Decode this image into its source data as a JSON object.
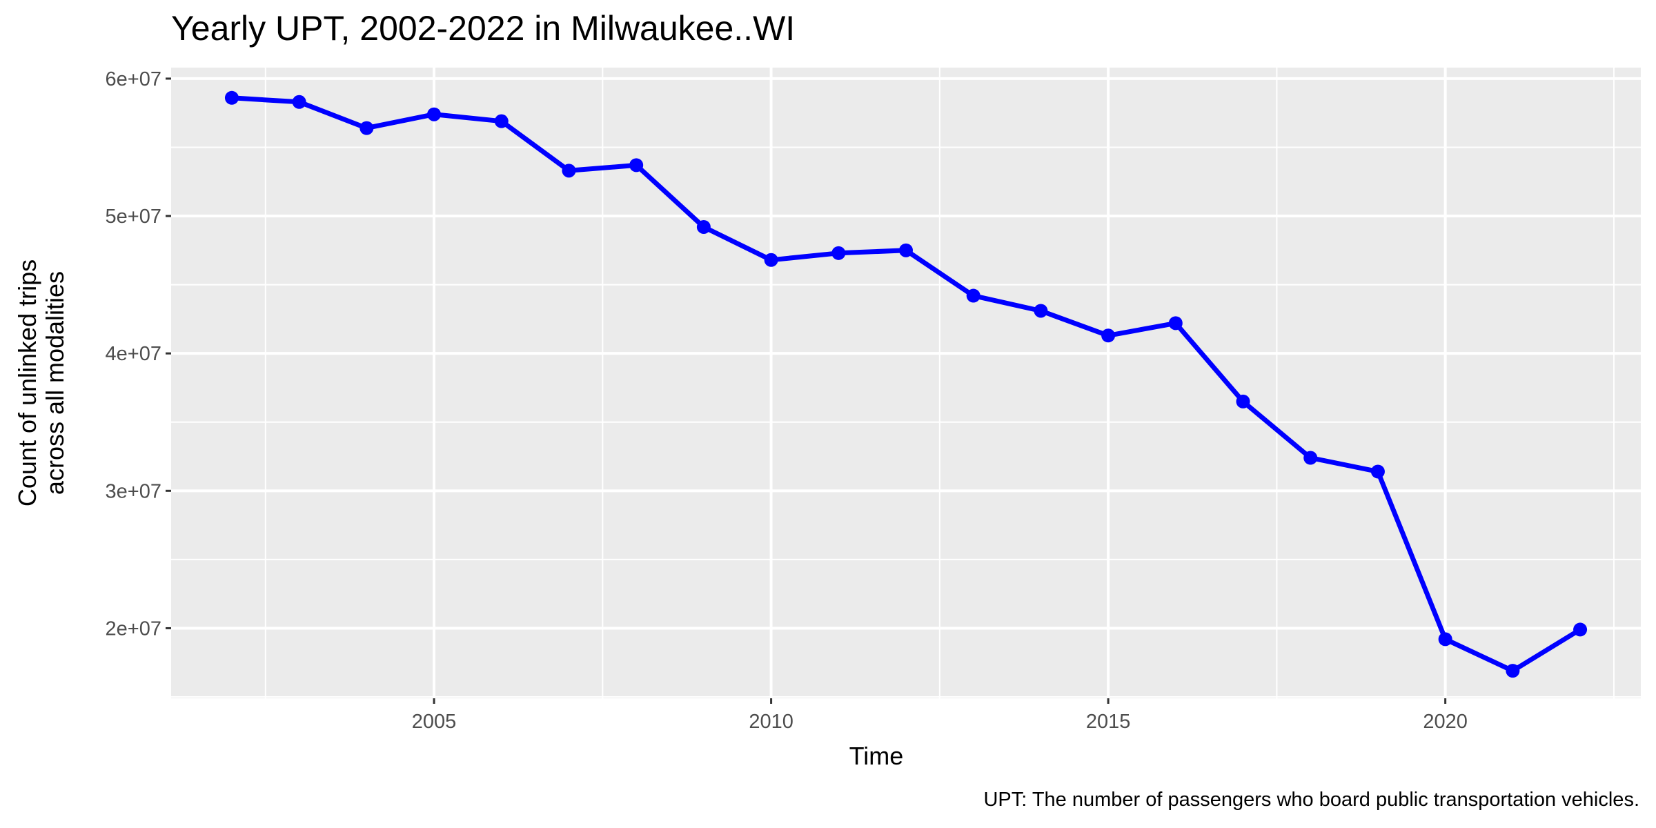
{
  "chart_data": {
    "type": "line",
    "title": "Yearly UPT, 2002-2022 in Milwaukee..WI",
    "xlabel": "Time",
    "ylabel_lines": [
      "Count of unlinked trips",
      "across all modalities"
    ],
    "caption": "UPT: The number of passengers who board public transportation vehicles.",
    "xlim": [
      2001.1,
      2022.9
    ],
    "ylim": [
      14900000,
      60800000
    ],
    "x_ticks": [
      2005,
      2010,
      2015,
      2020
    ],
    "x_tick_labels": [
      "2005",
      "2010",
      "2015",
      "2020"
    ],
    "y_ticks": [
      20000000,
      30000000,
      40000000,
      50000000,
      60000000
    ],
    "y_tick_labels": [
      "2e+07",
      "3e+07",
      "4e+07",
      "5e+07",
      "6e+07"
    ],
    "grid": true,
    "legend": "none",
    "series": [
      {
        "color": "#0000ff",
        "x": [
          2002,
          2003,
          2004,
          2005,
          2006,
          2007,
          2008,
          2009,
          2010,
          2011,
          2012,
          2013,
          2014,
          2015,
          2016,
          2017,
          2018,
          2019,
          2020,
          2021,
          2022
        ],
        "values": [
          58600000,
          58300000,
          56400000,
          57400000,
          56900000,
          53300000,
          53700000,
          49200000,
          46800000,
          47300000,
          47500000,
          44200000,
          43100000,
          41300000,
          42200000,
          36500000,
          32400000,
          31400000,
          19200000,
          16900000,
          19900000
        ]
      }
    ],
    "colors": {
      "panel": "#ebebeb",
      "grid": "#ffffff",
      "line": "#0000ff"
    }
  }
}
